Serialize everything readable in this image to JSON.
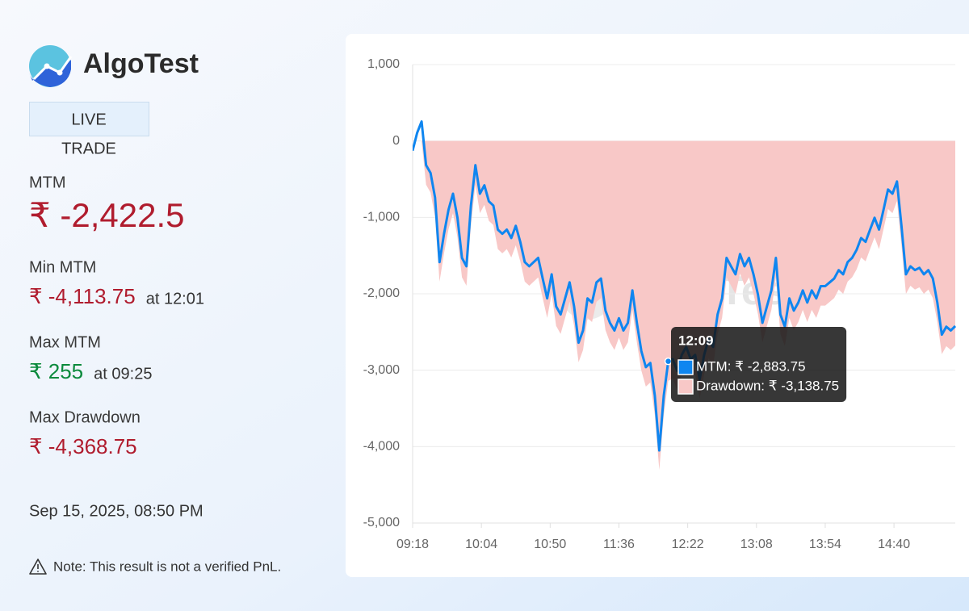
{
  "brand": "AlgoTest",
  "badge": "LIVE",
  "mode": "TRADE",
  "stats": [
    {
      "label": "MTM",
      "value": "₹ -2,422.5"
    },
    {
      "label": "Min MTM",
      "value": "₹ -4,113.75",
      "at": "at 12:01"
    },
    {
      "label": "Max MTM",
      "value": "₹ 255",
      "at": "at 09:25"
    },
    {
      "label": "Max Drawdown",
      "value": "₹ -4,368.75"
    }
  ],
  "timestamp": "Sep 15, 2025, 08:50 PM",
  "note": "Note: This result is not a verified PnL.",
  "chart_data": {
    "type": "line",
    "watermark": "AlgoTest",
    "x": [
      "09:18",
      "09:21",
      "09:24",
      "09:27",
      "09:30",
      "09:33",
      "09:36",
      "09:39",
      "09:42",
      "09:45",
      "09:48",
      "09:51",
      "09:54",
      "09:57",
      "10:00",
      "10:03",
      "10:06",
      "10:09",
      "10:12",
      "10:15",
      "10:18",
      "10:21",
      "10:24",
      "10:27",
      "10:30",
      "10:33",
      "10:36",
      "10:39",
      "10:42",
      "10:45",
      "10:48",
      "10:51",
      "10:54",
      "10:57",
      "11:00",
      "11:03",
      "11:06",
      "11:09",
      "11:12",
      "11:15",
      "11:18",
      "11:21",
      "11:24",
      "11:27",
      "11:30",
      "11:33",
      "11:36",
      "11:39",
      "11:42",
      "11:45",
      "11:48",
      "11:51",
      "11:54",
      "11:57",
      "12:00",
      "12:03",
      "12:06",
      "12:09",
      "12:12",
      "12:15",
      "12:18",
      "12:21",
      "12:24",
      "12:27",
      "12:30",
      "12:33",
      "12:36",
      "12:39",
      "12:42",
      "12:45",
      "12:48",
      "12:51",
      "12:54",
      "12:57",
      "13:00",
      "13:03",
      "13:06",
      "13:09",
      "13:12",
      "13:15",
      "13:18",
      "13:21",
      "13:24",
      "13:27",
      "13:30",
      "13:33",
      "13:36",
      "13:39",
      "13:42",
      "13:45",
      "13:48",
      "13:51",
      "13:54",
      "13:57",
      "14:00",
      "14:03",
      "14:06",
      "14:09",
      "14:12",
      "14:15",
      "14:18",
      "14:21",
      "14:24",
      "14:27",
      "14:30",
      "14:33",
      "14:36",
      "14:39",
      "14:42",
      "14:45",
      "14:48",
      "14:51",
      "14:54",
      "14:57",
      "15:00",
      "15:03",
      "15:06",
      "15:09",
      "15:12",
      "15:15",
      "15:18",
      "15:21"
    ],
    "series": [
      {
        "name": "MTM",
        "color": "#0f86f0",
        "values": [
          -127,
          105,
          255,
          -317,
          -420,
          -740,
          -1585,
          -1215,
          -900,
          -690,
          -1005,
          -1530,
          -1640,
          -845,
          -317,
          -690,
          -580,
          -790,
          -845,
          -1160,
          -1215,
          -1160,
          -1270,
          -1110,
          -1320,
          -1585,
          -1640,
          -1585,
          -1530,
          -1800,
          -2060,
          -1745,
          -2165,
          -2270,
          -2060,
          -1850,
          -2165,
          -2640,
          -2480,
          -2060,
          -2115,
          -1850,
          -1800,
          -2220,
          -2380,
          -2480,
          -2320,
          -2480,
          -2380,
          -1955,
          -2380,
          -2750,
          -2960,
          -2905,
          -3330,
          -4050,
          -3330,
          -2883.75,
          -2855,
          -3010,
          -2800,
          -2695,
          -2855,
          -2800,
          -3120,
          -2800,
          -2590,
          -2695,
          -2270,
          -2060,
          -1530,
          -1640,
          -1745,
          -1480,
          -1640,
          -1530,
          -1745,
          -2010,
          -2380,
          -2165,
          -1955,
          -1530,
          -2270,
          -2430,
          -2060,
          -2220,
          -2115,
          -1955,
          -2115,
          -1955,
          -2060,
          -1900,
          -1900,
          -1850,
          -1800,
          -1690,
          -1745,
          -1585,
          -1530,
          -1425,
          -1270,
          -1320,
          -1160,
          -1005,
          -1160,
          -900,
          -635,
          -690,
          -530,
          -1110,
          -1745,
          -1640,
          -1690,
          -1660,
          -1745,
          -1690,
          -1800,
          -2115,
          -2535,
          -2430,
          -2480,
          -2422.5
        ]
      },
      {
        "name": "Drawdown",
        "color": "#f8c8c7",
        "values": [
          0,
          0,
          0,
          -572,
          -675,
          -995,
          -1840,
          -1470,
          -1155,
          -945,
          -1260,
          -1785,
          -1895,
          -1100,
          -572,
          -945,
          -835,
          -1045,
          -1100,
          -1415,
          -1470,
          -1415,
          -1525,
          -1365,
          -1575,
          -1840,
          -1895,
          -1840,
          -1785,
          -2055,
          -2315,
          -2000,
          -2420,
          -2525,
          -2315,
          -2105,
          -2420,
          -2895,
          -2735,
          -2315,
          -2370,
          -2105,
          -2055,
          -2475,
          -2635,
          -2735,
          -2575,
          -2735,
          -2635,
          -2210,
          -2635,
          -3005,
          -3215,
          -3160,
          -3585,
          -4305,
          -3585,
          -3138.75,
          -3110,
          -3265,
          -3055,
          -2950,
          -3110,
          -3055,
          -3375,
          -3055,
          -2845,
          -2950,
          -2525,
          -2315,
          -1785,
          -1895,
          -2000,
          -1735,
          -1895,
          -1785,
          -2000,
          -2265,
          -2635,
          -2420,
          -2210,
          -1785,
          -2525,
          -2685,
          -2315,
          -2475,
          -2370,
          -2210,
          -2370,
          -2210,
          -2315,
          -2155,
          -2155,
          -2105,
          -2055,
          -1945,
          -2000,
          -1840,
          -1785,
          -1680,
          -1525,
          -1575,
          -1415,
          -1260,
          -1415,
          -1155,
          -890,
          -945,
          -785,
          -1365,
          -2000,
          -1895,
          -1945,
          -1915,
          -2000,
          -1945,
          -2055,
          -2370,
          -2790,
          -2685,
          -2735,
          -2677.5
        ]
      }
    ],
    "xlim": [
      "09:18",
      "15:21"
    ],
    "xticks": [
      "09:18",
      "10:04",
      "10:50",
      "11:36",
      "12:22",
      "13:08",
      "13:54",
      "14:40"
    ],
    "ylim": [
      -5000,
      1000
    ],
    "yticks": [
      {
        "value": -5000,
        "label": "-5,000"
      },
      {
        "value": -4000,
        "label": "-4,000"
      },
      {
        "value": -3000,
        "label": "-3,000"
      },
      {
        "value": -2000,
        "label": "-2,000"
      },
      {
        "value": -1000,
        "label": "-1,000"
      },
      0,
      {
        "value": 1000,
        "label": "1,000"
      }
    ],
    "grid": true,
    "tooltip": {
      "title": "12:09",
      "at": "12:09",
      "items": [
        "MTM: ₹ -2,883.75",
        "Drawdown: ₹ -3,138.75"
      ]
    }
  }
}
